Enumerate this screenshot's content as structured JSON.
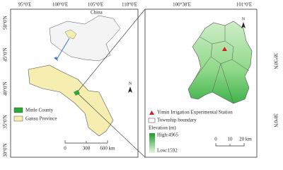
{
  "left_map": {
    "lon_labels": [
      "95°0'E",
      "100°0'E",
      "105°0'E",
      "110°0'E"
    ],
    "lat_labels": [
      "50°0'N",
      "45°0'N",
      "40°0'N",
      "35°0'N",
      "30°0'N"
    ],
    "country": "China",
    "north": "N",
    "legend": [
      "Minle County",
      "Gansu Province"
    ],
    "scale": [
      "0",
      "300",
      "600 km"
    ]
  },
  "right_map": {
    "lon_labels": [
      "100°30'E",
      "101°0'E"
    ],
    "lat_labels": [
      "38°30'N",
      "38°0'N"
    ],
    "north": "N",
    "legend": {
      "station": "Yimin Irrigation Experimental Station",
      "boundary": "Township boundary",
      "elevation_title": "Elevation (m)",
      "high": "High:4965",
      "low": "Low:1592"
    },
    "scale": [
      "0",
      "10",
      "20 km"
    ]
  }
}
